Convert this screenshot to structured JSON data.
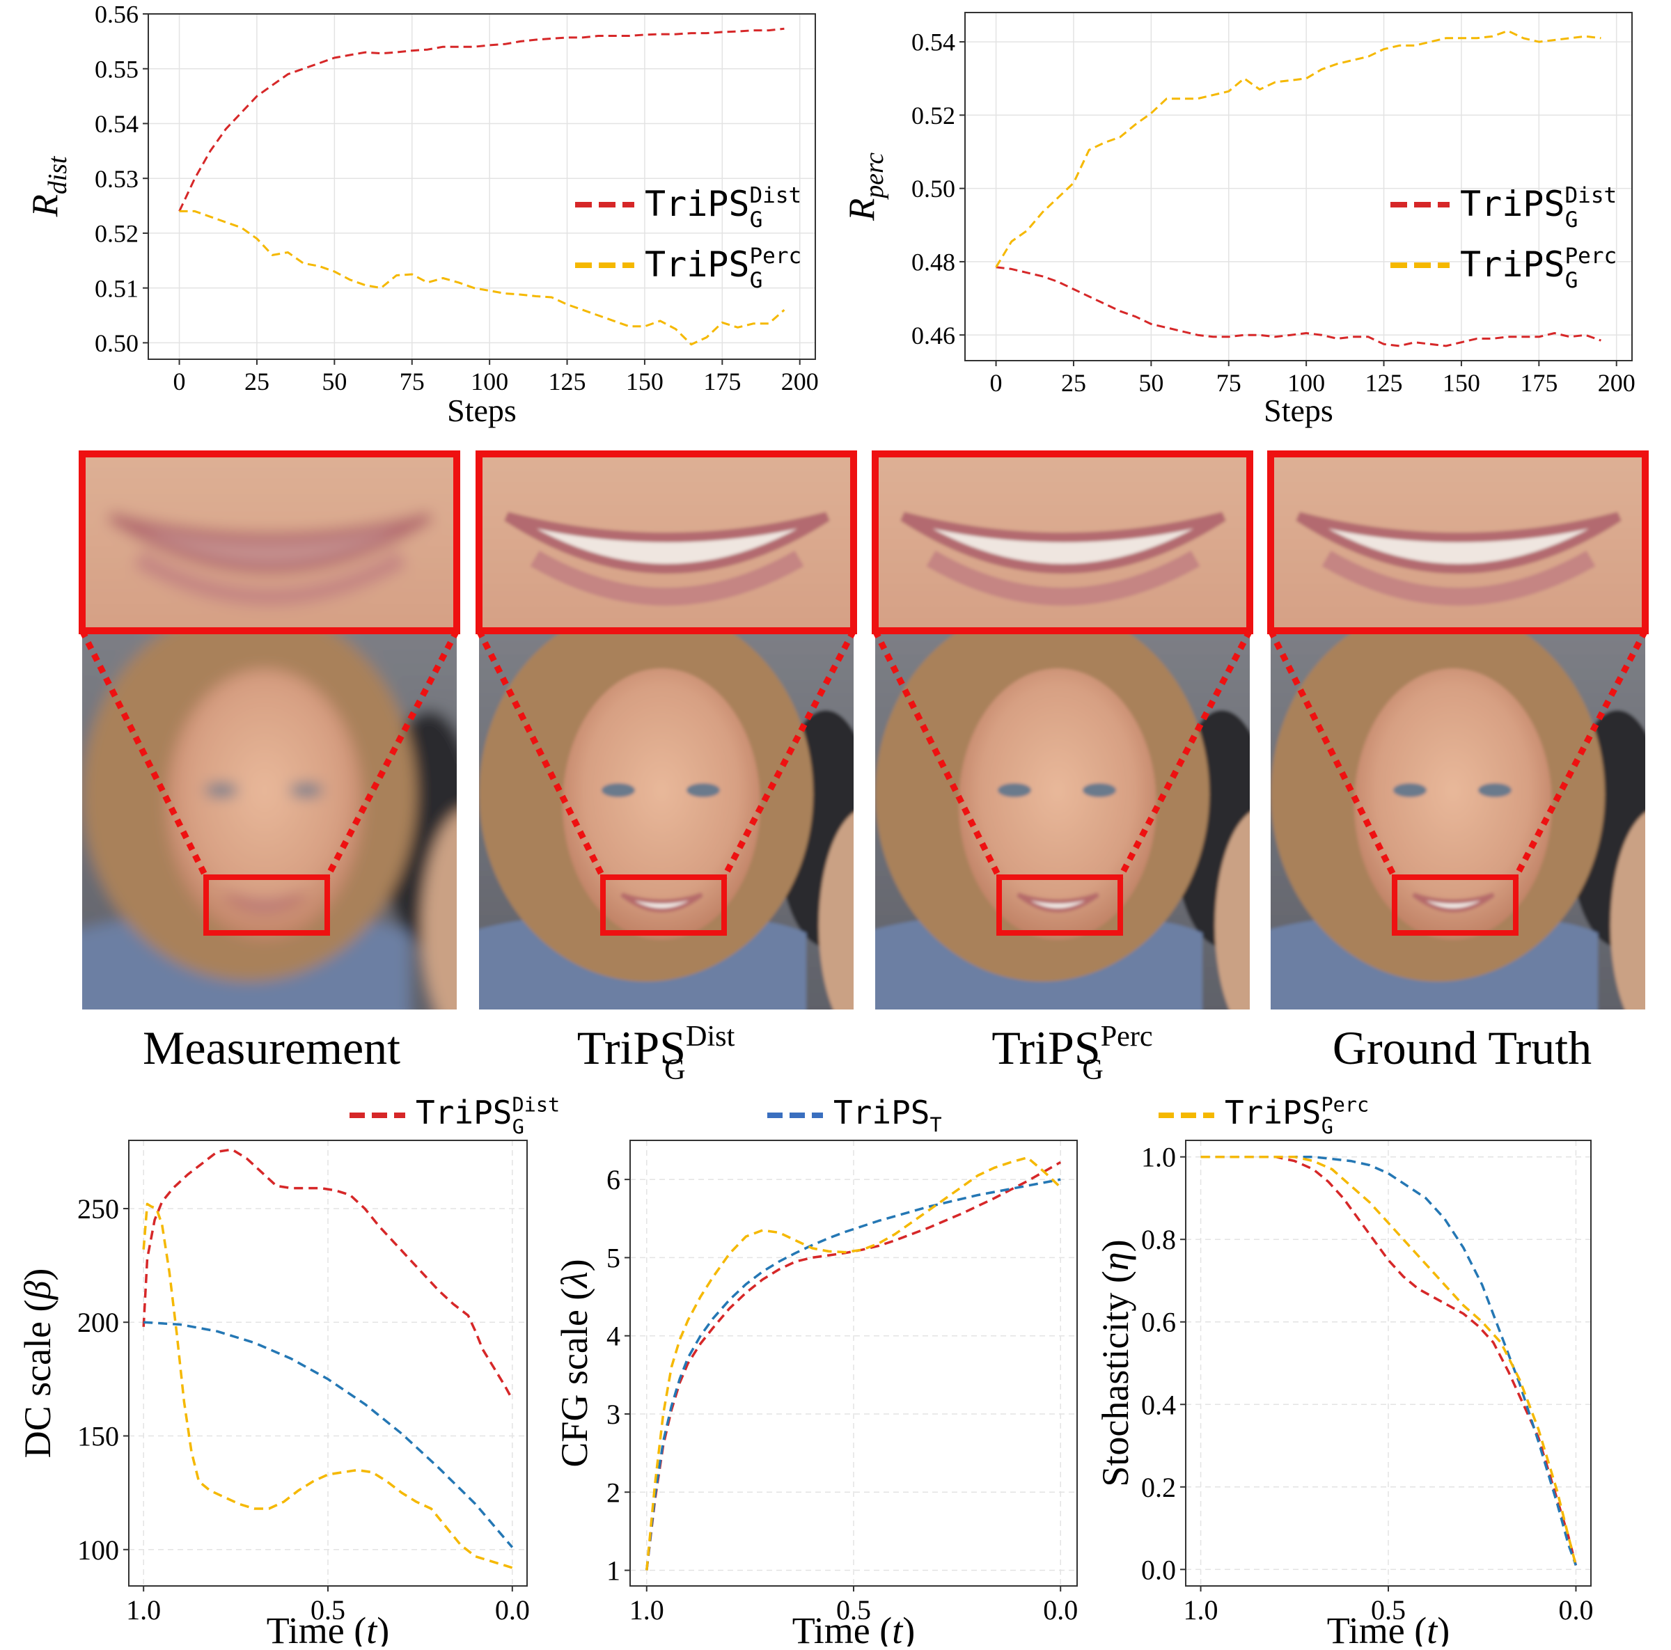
{
  "captions": [
    "Measurement",
    "TriPS",
    "TriPS",
    "Ground Truth"
  ],
  "caption_sub": [
    "",
    "G",
    "G",
    ""
  ],
  "caption_sup": [
    "",
    "Dist",
    "Perc",
    ""
  ],
  "legend_bottom": [
    {
      "base": "TriPS",
      "sub": "G",
      "sup": "Dist",
      "color": "#d62728"
    },
    {
      "base": "TriPS",
      "sub": "T",
      "sup": "",
      "color": "#3a6fbf"
    },
    {
      "base": "TriPS",
      "sub": "G",
      "sup": "Perc",
      "color": "#f5b800"
    }
  ],
  "colors": {
    "dist": "#d62728",
    "perc": "#f5b800",
    "tail": "#2477b4",
    "frame": "#ee1111"
  },
  "chart_data": [
    {
      "type": "line",
      "xlabel": "Steps",
      "ylabel": "R",
      "ylabel_sub": "dist",
      "xlim": [
        -10,
        205
      ],
      "ylim": [
        0.497,
        0.56
      ],
      "xticks": [
        0,
        25,
        50,
        75,
        100,
        125,
        150,
        175,
        200
      ],
      "yticks": [
        0.5,
        0.51,
        0.52,
        0.53,
        0.54,
        0.55,
        0.56
      ],
      "ytick_labels": [
        "0.50",
        "0.51",
        "0.52",
        "0.53",
        "0.54",
        "0.55",
        "0.56"
      ],
      "grid": true,
      "legend": "center-right",
      "series": [
        {
          "name": "TriPS",
          "sub": "G",
          "sup": "Dist",
          "color": "#d62728",
          "x": [
            0,
            5,
            10,
            15,
            20,
            25,
            30,
            35,
            40,
            45,
            50,
            55,
            60,
            65,
            70,
            75,
            80,
            85,
            90,
            95,
            100,
            105,
            110,
            115,
            120,
            125,
            130,
            135,
            140,
            145,
            150,
            155,
            160,
            165,
            170,
            175,
            180,
            185,
            190,
            195
          ],
          "y": [
            0.524,
            0.53,
            0.535,
            0.539,
            0.542,
            0.545,
            0.547,
            0.549,
            0.55,
            0.551,
            0.552,
            0.5525,
            0.553,
            0.5528,
            0.553,
            0.5533,
            0.5535,
            0.554,
            0.554,
            0.554,
            0.5543,
            0.5545,
            0.555,
            0.5553,
            0.5555,
            0.5557,
            0.5557,
            0.556,
            0.556,
            0.556,
            0.5562,
            0.5563,
            0.5563,
            0.5565,
            0.5565,
            0.5567,
            0.5568,
            0.557,
            0.557,
            0.5573
          ]
        },
        {
          "name": "TriPS",
          "sub": "G",
          "sup": "Perc",
          "color": "#f5b800",
          "x": [
            0,
            5,
            10,
            15,
            20,
            25,
            30,
            35,
            40,
            45,
            50,
            55,
            60,
            65,
            70,
            75,
            80,
            85,
            90,
            95,
            100,
            105,
            110,
            115,
            120,
            125,
            130,
            135,
            140,
            145,
            150,
            155,
            160,
            165,
            170,
            175,
            180,
            185,
            190,
            195
          ],
          "y": [
            0.524,
            0.524,
            0.523,
            0.522,
            0.521,
            0.519,
            0.516,
            0.5165,
            0.5145,
            0.514,
            0.513,
            0.5115,
            0.5105,
            0.51,
            0.5123,
            0.5125,
            0.511,
            0.5118,
            0.511,
            0.51,
            0.5095,
            0.509,
            0.5088,
            0.5085,
            0.5083,
            0.507,
            0.506,
            0.505,
            0.504,
            0.503,
            0.503,
            0.504,
            0.5025,
            0.4997,
            0.501,
            0.5037,
            0.5028,
            0.5035,
            0.5035,
            0.506
          ]
        }
      ]
    },
    {
      "type": "line",
      "xlabel": "Steps",
      "ylabel": "R",
      "ylabel_sub": "perc",
      "xlim": [
        -10,
        205
      ],
      "ylim": [
        0.453,
        0.548
      ],
      "xticks": [
        0,
        25,
        50,
        75,
        100,
        125,
        150,
        175,
        200
      ],
      "yticks": [
        0.46,
        0.48,
        0.5,
        0.52,
        0.54
      ],
      "ytick_labels": [
        "0.46",
        "0.48",
        "0.50",
        "0.52",
        "0.54"
      ],
      "grid": true,
      "legend": "center-right",
      "series": [
        {
          "name": "TriPS",
          "sub": "G",
          "sup": "Dist",
          "color": "#d62728",
          "x": [
            0,
            5,
            10,
            15,
            20,
            25,
            30,
            35,
            40,
            45,
            50,
            55,
            60,
            65,
            70,
            75,
            80,
            85,
            90,
            95,
            100,
            105,
            110,
            115,
            120,
            125,
            130,
            135,
            140,
            145,
            150,
            155,
            160,
            165,
            170,
            175,
            180,
            185,
            190,
            195
          ],
          "y": [
            0.4785,
            0.478,
            0.477,
            0.476,
            0.4745,
            0.4725,
            0.4705,
            0.4685,
            0.4665,
            0.465,
            0.463,
            0.462,
            0.461,
            0.46,
            0.4595,
            0.4595,
            0.46,
            0.46,
            0.4595,
            0.46,
            0.4605,
            0.46,
            0.459,
            0.4595,
            0.4595,
            0.4575,
            0.457,
            0.458,
            0.4575,
            0.457,
            0.458,
            0.459,
            0.459,
            0.4595,
            0.4595,
            0.4595,
            0.4605,
            0.4595,
            0.46,
            0.4585
          ]
        },
        {
          "name": "TriPS",
          "sub": "G",
          "sup": "Perc",
          "color": "#f5b800",
          "x": [
            0,
            5,
            10,
            15,
            20,
            25,
            30,
            35,
            40,
            45,
            50,
            55,
            60,
            65,
            70,
            75,
            80,
            85,
            90,
            95,
            100,
            105,
            110,
            115,
            120,
            125,
            130,
            135,
            140,
            145,
            150,
            155,
            160,
            165,
            170,
            175,
            180,
            185,
            190,
            195
          ],
          "y": [
            0.4785,
            0.4855,
            0.4885,
            0.4935,
            0.4975,
            0.5015,
            0.5105,
            0.5125,
            0.514,
            0.5175,
            0.5205,
            0.5245,
            0.5245,
            0.5245,
            0.5255,
            0.5265,
            0.53,
            0.527,
            0.529,
            0.5295,
            0.53,
            0.5325,
            0.534,
            0.535,
            0.536,
            0.538,
            0.539,
            0.539,
            0.54,
            0.541,
            0.541,
            0.541,
            0.5415,
            0.543,
            0.541,
            0.54,
            0.5405,
            0.541,
            0.5415,
            0.541
          ]
        }
      ]
    },
    {
      "type": "line",
      "xlabel": "Time",
      "xlabel_var": "t",
      "ylabel": "DC scale",
      "ylabel_var": "β",
      "xlim": [
        1.04,
        -0.04
      ],
      "ylim": [
        84,
        280
      ],
      "xticks": [
        1.0,
        0.5,
        0.0
      ],
      "xtick_labels": [
        "1.0",
        "0.5",
        "0.0"
      ],
      "yticks": [
        100,
        150,
        200,
        250
      ],
      "ytick_labels": [
        "100",
        "150",
        "200",
        "250"
      ],
      "grid": true,
      "legend": "top",
      "series": [
        {
          "name": "TriPS",
          "sub": "G",
          "sup": "Dist",
          "color": "#d62728",
          "x": [
            1.0,
            0.99,
            0.97,
            0.95,
            0.92,
            0.88,
            0.84,
            0.8,
            0.76,
            0.72,
            0.68,
            0.64,
            0.6,
            0.56,
            0.52,
            0.48,
            0.44,
            0.4,
            0.36,
            0.32,
            0.28,
            0.24,
            0.2,
            0.16,
            0.12,
            0.1,
            0.08,
            0.05,
            0.02,
            0.0
          ],
          "y": [
            198,
            228,
            245,
            253,
            259,
            265,
            270,
            275,
            276,
            272,
            266,
            260,
            259,
            259,
            259,
            258,
            256,
            250,
            242,
            235,
            228,
            221,
            214,
            208,
            203,
            196,
            188,
            180,
            172,
            166
          ]
        },
        {
          "name": "TriPS",
          "sub": "T",
          "sup": "",
          "color": "#2477b4",
          "x": [
            1.0,
            0.9,
            0.8,
            0.7,
            0.6,
            0.5,
            0.4,
            0.3,
            0.2,
            0.1,
            0.0
          ],
          "y": [
            200,
            199,
            196,
            191,
            184,
            175,
            164,
            151,
            136,
            120,
            101
          ]
        },
        {
          "name": "TriPS",
          "sub": "G",
          "sup": "Perc",
          "color": "#f5b800",
          "x": [
            1.0,
            0.99,
            0.98,
            0.965,
            0.95,
            0.93,
            0.91,
            0.89,
            0.87,
            0.85,
            0.82,
            0.78,
            0.74,
            0.7,
            0.66,
            0.62,
            0.58,
            0.54,
            0.5,
            0.46,
            0.42,
            0.38,
            0.34,
            0.3,
            0.26,
            0.22,
            0.18,
            0.14,
            0.1,
            0.06,
            0.02,
            0.0
          ],
          "y": [
            232,
            252,
            251,
            250,
            243,
            222,
            195,
            165,
            143,
            130,
            126,
            123,
            120,
            118,
            118,
            121,
            126,
            130,
            133,
            134,
            135,
            134,
            130,
            125,
            121,
            118,
            110,
            102,
            97,
            95,
            93,
            92
          ]
        }
      ]
    },
    {
      "type": "line",
      "xlabel": "Time",
      "xlabel_var": "t",
      "ylabel": "CFG scale",
      "ylabel_var": "λ",
      "xlim": [
        1.04,
        -0.04
      ],
      "ylim": [
        0.8,
        6.5
      ],
      "xticks": [
        1.0,
        0.5,
        0.0
      ],
      "xtick_labels": [
        "1.0",
        "0.5",
        "0.0"
      ],
      "yticks": [
        1,
        2,
        3,
        4,
        5,
        6
      ],
      "ytick_labels": [
        "1",
        "2",
        "3",
        "4",
        "5",
        "6"
      ],
      "grid": true,
      "legend": "top",
      "series": [
        {
          "name": "TriPS",
          "sub": "G",
          "sup": "Dist",
          "color": "#d62728",
          "x": [
            1.0,
            0.98,
            0.96,
            0.94,
            0.92,
            0.9,
            0.87,
            0.84,
            0.8,
            0.76,
            0.72,
            0.68,
            0.64,
            0.6,
            0.56,
            0.52,
            0.48,
            0.44,
            0.4,
            0.36,
            0.32,
            0.28,
            0.24,
            0.2,
            0.16,
            0.12,
            0.08,
            0.04,
            0.0
          ],
          "y": [
            1.0,
            1.9,
            2.6,
            3.05,
            3.4,
            3.65,
            3.9,
            4.1,
            4.35,
            4.55,
            4.72,
            4.85,
            4.95,
            5.0,
            5.03,
            5.06,
            5.1,
            5.15,
            5.22,
            5.3,
            5.38,
            5.47,
            5.56,
            5.66,
            5.76,
            5.87,
            5.98,
            6.1,
            6.22
          ]
        },
        {
          "name": "TriPS",
          "sub": "T",
          "sup": "",
          "color": "#2477b4",
          "x": [
            1.0,
            0.98,
            0.96,
            0.94,
            0.92,
            0.9,
            0.87,
            0.84,
            0.8,
            0.76,
            0.72,
            0.68,
            0.64,
            0.6,
            0.56,
            0.52,
            0.48,
            0.44,
            0.4,
            0.36,
            0.32,
            0.28,
            0.24,
            0.2,
            0.16,
            0.12,
            0.08,
            0.04,
            0.0
          ],
          "y": [
            1.0,
            1.95,
            2.65,
            3.1,
            3.45,
            3.72,
            4.0,
            4.22,
            4.46,
            4.66,
            4.82,
            4.95,
            5.06,
            5.16,
            5.25,
            5.33,
            5.4,
            5.47,
            5.53,
            5.59,
            5.65,
            5.7,
            5.75,
            5.8,
            5.84,
            5.88,
            5.92,
            5.96,
            6.0
          ]
        },
        {
          "name": "TriPS",
          "sub": "G",
          "sup": "Perc",
          "color": "#f5b800",
          "x": [
            1.0,
            0.98,
            0.96,
            0.94,
            0.92,
            0.9,
            0.87,
            0.84,
            0.8,
            0.76,
            0.72,
            0.68,
            0.64,
            0.6,
            0.56,
            0.52,
            0.48,
            0.44,
            0.4,
            0.36,
            0.32,
            0.28,
            0.24,
            0.2,
            0.16,
            0.12,
            0.08,
            0.04,
            0.0
          ],
          "y": [
            1.0,
            2.1,
            3.0,
            3.6,
            3.95,
            4.2,
            4.5,
            4.75,
            5.05,
            5.27,
            5.35,
            5.32,
            5.22,
            5.12,
            5.08,
            5.07,
            5.1,
            5.18,
            5.3,
            5.45,
            5.6,
            5.75,
            5.9,
            6.05,
            6.15,
            6.22,
            6.28,
            6.1,
            5.9
          ]
        }
      ]
    },
    {
      "type": "line",
      "xlabel": "Time",
      "xlabel_var": "t",
      "ylabel": "Stochasticity",
      "ylabel_var": "η",
      "xlim": [
        1.04,
        -0.04
      ],
      "ylim": [
        -0.04,
        1.04
      ],
      "xticks": [
        1.0,
        0.5,
        0.0
      ],
      "xtick_labels": [
        "1.0",
        "0.5",
        "0.0"
      ],
      "yticks": [
        0.0,
        0.2,
        0.4,
        0.6,
        0.8,
        1.0
      ],
      "ytick_labels": [
        "0.0",
        "0.2",
        "0.4",
        "0.6",
        "0.8",
        "1.0"
      ],
      "grid": true,
      "legend": "top",
      "series": [
        {
          "name": "TriPS",
          "sub": "G",
          "sup": "Dist",
          "color": "#d62728",
          "x": [
            1.0,
            0.9,
            0.8,
            0.75,
            0.7,
            0.66,
            0.62,
            0.58,
            0.54,
            0.5,
            0.46,
            0.42,
            0.38,
            0.34,
            0.3,
            0.26,
            0.22,
            0.18,
            0.14,
            0.1,
            0.06,
            0.02,
            0.0
          ],
          "y": [
            1.0,
            1.0,
            1.0,
            0.99,
            0.97,
            0.94,
            0.9,
            0.85,
            0.8,
            0.75,
            0.71,
            0.68,
            0.66,
            0.64,
            0.62,
            0.59,
            0.55,
            0.48,
            0.4,
            0.32,
            0.2,
            0.08,
            0.01
          ]
        },
        {
          "name": "TriPS",
          "sub": "T",
          "sup": "",
          "color": "#2477b4",
          "x": [
            1.0,
            0.9,
            0.8,
            0.7,
            0.6,
            0.55,
            0.5,
            0.45,
            0.4,
            0.35,
            0.3,
            0.25,
            0.2,
            0.15,
            0.1,
            0.05,
            0.02,
            0.0
          ],
          "y": [
            1.0,
            1.0,
            1.0,
            1.0,
            0.99,
            0.98,
            0.96,
            0.93,
            0.9,
            0.85,
            0.78,
            0.69,
            0.57,
            0.45,
            0.31,
            0.16,
            0.06,
            0.01
          ]
        },
        {
          "name": "TriPS",
          "sub": "G",
          "sup": "Perc",
          "color": "#f5b800",
          "x": [
            1.0,
            0.9,
            0.8,
            0.75,
            0.7,
            0.65,
            0.6,
            0.55,
            0.5,
            0.45,
            0.4,
            0.35,
            0.3,
            0.25,
            0.2,
            0.15,
            0.1,
            0.05,
            0.02,
            0.0
          ],
          "y": [
            1.0,
            1.0,
            1.0,
            1.0,
            0.99,
            0.97,
            0.93,
            0.89,
            0.84,
            0.79,
            0.74,
            0.69,
            0.64,
            0.6,
            0.55,
            0.46,
            0.34,
            0.19,
            0.08,
            0.01
          ]
        }
      ]
    }
  ]
}
